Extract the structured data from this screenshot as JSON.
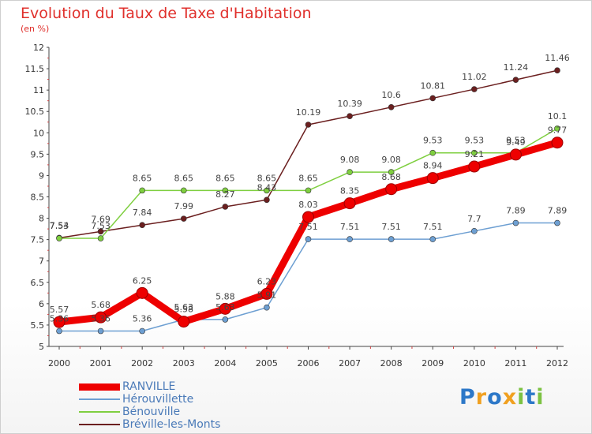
{
  "chart_data": {
    "type": "line",
    "title": "Evolution du Taux de Taxe d'Habitation",
    "subtitle": "(en %)",
    "xlabel": "",
    "ylabel": "",
    "x": [
      "2000",
      "2001",
      "2002",
      "2003",
      "2004",
      "2005",
      "2006",
      "2007",
      "2008",
      "2009",
      "2010",
      "2011",
      "2012"
    ],
    "ylim": [
      5,
      12
    ],
    "yticks": [
      "5",
      "5.5",
      "6",
      "6.5",
      "7",
      "7.5",
      "8",
      "8.5",
      "9",
      "9.5",
      "10",
      "10.5",
      "11",
      "11.5",
      "12"
    ],
    "grid": false,
    "legend_position": "bottom-left",
    "series": [
      {
        "name": "Bréville-les-Monts",
        "color": "#6b1f1f",
        "values": [
          7.54,
          7.69,
          7.84,
          7.99,
          8.27,
          8.43,
          10.19,
          10.39,
          10.6,
          10.81,
          11.02,
          11.24,
          11.46
        ],
        "labels": [
          "7.54",
          "7.69",
          "7.84",
          "7.99",
          "8.27",
          "8.43",
          "10.19",
          "10.39",
          "10.6",
          "10.81",
          "11.02",
          "11.24",
          "11.46"
        ]
      },
      {
        "name": "Bénouville",
        "color": "#7fcf40",
        "values": [
          7.53,
          7.53,
          8.65,
          8.65,
          8.65,
          8.65,
          8.65,
          9.08,
          9.08,
          9.53,
          9.53,
          9.53,
          10.1
        ],
        "labels": [
          "7.53",
          "7.53",
          "8.65",
          "8.65",
          "8.65",
          "8.65",
          "8.65",
          "9.08",
          "9.08",
          "9.53",
          "9.53",
          "9.53",
          "10.1"
        ]
      },
      {
        "name": "Hérouvillette",
        "color": "#6d9fd2",
        "values": [
          5.36,
          5.36,
          5.36,
          5.63,
          5.63,
          5.91,
          7.51,
          7.51,
          7.51,
          7.51,
          7.7,
          7.89,
          7.89
        ],
        "labels": [
          "5.36",
          "5.36",
          "5.36",
          "5.63",
          "5.63",
          "5.91",
          "7.51",
          "7.51",
          "7.51",
          "7.51",
          "7.7",
          "7.89",
          "7.89"
        ]
      },
      {
        "name": "RANVILLE",
        "color": "#ee0000",
        "values": [
          5.57,
          5.68,
          6.25,
          5.58,
          5.88,
          6.23,
          8.03,
          8.35,
          8.68,
          8.94,
          9.21,
          9.49,
          9.77
        ],
        "labels": [
          "5.57",
          "5.68",
          "6.25",
          "5.58",
          "5.88",
          "6.23",
          "8.03",
          "8.35",
          "8.68",
          "8.94",
          "9.21",
          "9.49",
          "9.77"
        ]
      }
    ]
  },
  "legend": [
    {
      "name": "RANVILLE",
      "color": "#ee0000"
    },
    {
      "name": "Hérouvillette",
      "color": "#6d9fd2"
    },
    {
      "name": "Bénouville",
      "color": "#7fcf40"
    },
    {
      "name": "Bréville-les-Monts",
      "color": "#6b1f1f"
    }
  ],
  "logo": {
    "text": "Proxiti",
    "letters": [
      {
        "ch": "P",
        "color": "#2d78c8"
      },
      {
        "ch": "r",
        "color": "#f0a020"
      },
      {
        "ch": "o",
        "color": "#2d78c8"
      },
      {
        "ch": "x",
        "color": "#f0a020"
      },
      {
        "ch": "i",
        "color": "#7cc242"
      },
      {
        "ch": "t",
        "color": "#2d78c8"
      },
      {
        "ch": "i",
        "color": "#7cc242"
      }
    ]
  }
}
